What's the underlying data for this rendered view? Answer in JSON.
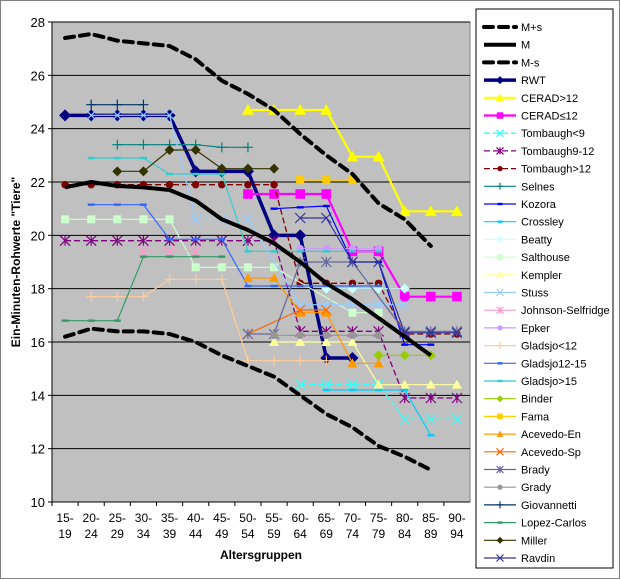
{
  "chart_data": {
    "type": "line",
    "title": "",
    "xlabel": "Altersgruppen",
    "ylabel": "Ein-Minuten-Rohwerte \"Tiere\"",
    "ylim": [
      10,
      28
    ],
    "yticks": [
      10,
      12,
      14,
      16,
      18,
      20,
      22,
      24,
      26,
      28
    ],
    "grid": true,
    "legend": "right",
    "plot_background": "#C0C0C0",
    "categories": [
      "15-19",
      "20-24",
      "25-29",
      "30-34",
      "35-39",
      "40-44",
      "45-49",
      "50-54",
      "55-59",
      "60-64",
      "65-69",
      "70-74",
      "75-79",
      "80-84",
      "85-89",
      "90-94"
    ],
    "series": [
      {
        "name": "M+s",
        "color": "#000000",
        "marker": "none",
        "style": "dashed-thick",
        "values": [
          27.4,
          27.55,
          27.3,
          27.2,
          27.1,
          26.6,
          25.8,
          25.3,
          24.7,
          23.8,
          23.0,
          22.3,
          21.2,
          20.6,
          19.6,
          null
        ]
      },
      {
        "name": "M",
        "color": "#000000",
        "marker": "none",
        "style": "solid-thick",
        "values": [
          21.8,
          22.0,
          21.85,
          21.8,
          21.7,
          21.3,
          20.6,
          20.2,
          19.7,
          19.0,
          18.2,
          17.6,
          16.9,
          16.2,
          15.5,
          null
        ]
      },
      {
        "name": "M-s",
        "color": "#000000",
        "marker": "none",
        "style": "dashed-thick",
        "values": [
          16.2,
          16.5,
          16.4,
          16.4,
          16.3,
          16.0,
          15.5,
          15.1,
          14.7,
          14.0,
          13.3,
          12.8,
          12.1,
          11.7,
          11.2,
          null
        ]
      },
      {
        "name": "RWT",
        "color": "#000080",
        "marker": "diamond",
        "style": "solid-bold",
        "values": [
          24.5,
          24.5,
          24.5,
          24.5,
          24.5,
          22.4,
          22.4,
          22.4,
          20.0,
          20.0,
          15.4,
          15.4,
          null,
          null,
          null,
          null
        ]
      },
      {
        "name": "CERAD>12",
        "color": "#FFFF00",
        "marker": "triangle",
        "style": "solid-medium",
        "values": [
          null,
          null,
          null,
          null,
          null,
          null,
          null,
          24.7,
          24.7,
          24.7,
          24.7,
          22.95,
          22.95,
          20.9,
          20.9,
          20.9
        ]
      },
      {
        "name": "CERAD≤12",
        "color": "#FF00FF",
        "marker": "square",
        "style": "solid-medium",
        "values": [
          null,
          null,
          null,
          null,
          null,
          null,
          null,
          21.55,
          21.55,
          21.55,
          21.55,
          19.4,
          19.4,
          17.7,
          17.7,
          17.7
        ]
      },
      {
        "name": "Tombaugh<9",
        "color": "#33FFFF",
        "marker": "x",
        "style": "dashed",
        "values": [
          null,
          null,
          null,
          null,
          null,
          null,
          null,
          null,
          null,
          14.4,
          14.4,
          14.4,
          14.4,
          13.1,
          13.1,
          13.1
        ]
      },
      {
        "name": "Tombaugh9-12",
        "color": "#800080",
        "marker": "star",
        "style": "dashed",
        "values": [
          19.8,
          19.8,
          19.8,
          19.8,
          19.8,
          19.8,
          19.8,
          19.8,
          19.8,
          16.4,
          16.4,
          16.4,
          16.4,
          13.9,
          13.9,
          13.9
        ]
      },
      {
        "name": "Tombaugh>12",
        "color": "#800000",
        "marker": "circle",
        "style": "dashed",
        "values": [
          21.9,
          21.9,
          21.9,
          21.9,
          21.9,
          21.9,
          21.9,
          21.9,
          21.9,
          18.2,
          18.2,
          18.2,
          18.2,
          16.3,
          16.3,
          16.3
        ]
      },
      {
        "name": "Selnes",
        "color": "#008080",
        "marker": "plus",
        "style": "solid",
        "values": [
          null,
          null,
          23.4,
          23.4,
          23.4,
          23.4,
          23.3,
          23.3,
          null,
          null,
          null,
          null,
          null,
          null,
          null,
          null
        ]
      },
      {
        "name": "Kozora",
        "color": "#0000FF",
        "marker": "dash",
        "style": "solid",
        "values": [
          null,
          null,
          null,
          null,
          null,
          null,
          null,
          null,
          21.0,
          21.05,
          21.1,
          19.0,
          19.0,
          15.9,
          15.9,
          null
        ]
      },
      {
        "name": "Crossley",
        "color": "#00CCFF",
        "marker": "dash",
        "style": "solid",
        "values": [
          null,
          null,
          null,
          null,
          null,
          null,
          null,
          null,
          null,
          null,
          14.2,
          14.2,
          14.2,
          14.2,
          12.5,
          null
        ]
      },
      {
        "name": "Beatty",
        "color": "#CCFFFF",
        "marker": "diamond",
        "style": "solid",
        "values": [
          null,
          null,
          null,
          null,
          null,
          null,
          null,
          null,
          null,
          null,
          18.0,
          18.0,
          18.0,
          18.0,
          null,
          null
        ]
      },
      {
        "name": "Salthouse",
        "color": "#CCFFCC",
        "marker": "square",
        "style": "solid",
        "values": [
          20.6,
          20.6,
          20.6,
          20.6,
          20.6,
          18.8,
          18.8,
          18.8,
          18.8,
          null,
          null,
          17.1,
          17.1,
          null,
          null,
          null
        ]
      },
      {
        "name": "Kempler",
        "color": "#FFFF99",
        "marker": "triangle",
        "style": "solid",
        "values": [
          null,
          null,
          null,
          null,
          null,
          null,
          null,
          null,
          16.0,
          16.0,
          16.0,
          16.0,
          14.4,
          14.4,
          14.4,
          14.4
        ]
      },
      {
        "name": "Stuss",
        "color": "#99CCFF",
        "marker": "x",
        "style": "solid",
        "values": [
          null,
          24.5,
          24.5,
          24.5,
          24.5,
          20.6,
          20.6,
          20.6,
          null,
          17.4,
          17.4,
          17.4,
          17.4,
          17.4,
          null,
          null
        ]
      },
      {
        "name": "Johnson-Selfridge",
        "color": "#FF99CC",
        "marker": "star",
        "style": "solid",
        "values": [
          null,
          null,
          null,
          19.4,
          19.4,
          19.4,
          null,
          null,
          null,
          null,
          null,
          null,
          null,
          null,
          null,
          null
        ]
      },
      {
        "name": "Epker",
        "color": "#CC99FF",
        "marker": "circle",
        "style": "solid",
        "values": [
          null,
          null,
          null,
          null,
          null,
          null,
          null,
          null,
          null,
          19.5,
          19.5,
          19.5,
          19.5,
          null,
          null,
          null
        ]
      },
      {
        "name": "Gladsjo<12",
        "color": "#FFCC99",
        "marker": "plus",
        "style": "solid",
        "values": [
          null,
          17.7,
          17.7,
          17.7,
          18.35,
          18.35,
          18.35,
          15.3,
          15.3,
          15.3,
          15.3,
          null,
          null,
          null,
          null,
          null
        ]
      },
      {
        "name": "Gladsjo12-15",
        "color": "#3366FF",
        "marker": "dash",
        "style": "solid",
        "values": [
          null,
          21.15,
          21.15,
          21.15,
          19.85,
          19.85,
          19.85,
          18.1,
          18.1,
          18.1,
          18.1,
          18.1,
          18.1,
          null,
          null,
          null
        ]
      },
      {
        "name": "Gladsjo>15",
        "color": "#33CCCC",
        "marker": "dash",
        "style": "solid",
        "values": [
          null,
          22.9,
          22.9,
          22.9,
          22.3,
          22.3,
          22.3,
          19.4,
          19.4,
          19.4,
          19.4,
          19.4,
          19.4,
          null,
          null,
          null
        ]
      },
      {
        "name": "Binder",
        "color": "#99CC00",
        "marker": "diamond",
        "style": "solid",
        "values": [
          null,
          null,
          null,
          null,
          null,
          null,
          null,
          null,
          null,
          null,
          null,
          null,
          15.5,
          15.5,
          15.5,
          null
        ]
      },
      {
        "name": "Fama",
        "color": "#FFCC00",
        "marker": "square",
        "style": "solid",
        "values": [
          null,
          null,
          null,
          null,
          null,
          null,
          null,
          null,
          null,
          22.07,
          22.07,
          22.07,
          null,
          null,
          null,
          null
        ]
      },
      {
        "name": "Acevedo-En",
        "color": "#FF9900",
        "marker": "triangle",
        "style": "solid",
        "values": [
          null,
          null,
          null,
          null,
          null,
          null,
          null,
          18.4,
          18.4,
          17.1,
          17.1,
          15.2,
          15.2,
          null,
          null,
          null
        ]
      },
      {
        "name": "Acevedo-Sp",
        "color": "#FF6600",
        "marker": "x",
        "style": "solid",
        "values": [
          null,
          null,
          null,
          null,
          null,
          null,
          null,
          16.3,
          null,
          17.2,
          17.2,
          null,
          null,
          null,
          null,
          null
        ]
      },
      {
        "name": "Brady",
        "color": "#666699",
        "marker": "star",
        "style": "solid",
        "values": [
          null,
          null,
          null,
          null,
          null,
          null,
          null,
          16.3,
          16.3,
          19.0,
          19.0,
          19.0,
          null,
          16.4,
          16.4,
          16.4
        ]
      },
      {
        "name": "Grady",
        "color": "#969696",
        "marker": "circle",
        "style": "solid",
        "values": [
          null,
          null,
          null,
          null,
          null,
          null,
          null,
          null,
          16.25,
          16.25,
          16.25,
          16.25,
          16.25,
          null,
          null,
          null
        ]
      },
      {
        "name": "Giovannetti",
        "color": "#003366",
        "marker": "plus",
        "style": "solid",
        "values": [
          null,
          24.9,
          24.9,
          24.9,
          null,
          null,
          null,
          null,
          null,
          null,
          null,
          null,
          null,
          null,
          null,
          null
        ]
      },
      {
        "name": "Lopez-Carlos",
        "color": "#339966",
        "marker": "dash",
        "style": "solid",
        "values": [
          16.8,
          16.8,
          16.8,
          19.2,
          19.2,
          19.2,
          19.2,
          null,
          null,
          null,
          null,
          null,
          null,
          null,
          null,
          null
        ]
      },
      {
        "name": "Miller",
        "color": "#333300",
        "marker": "diamond",
        "style": "solid",
        "values": [
          null,
          null,
          22.4,
          22.4,
          23.2,
          23.2,
          22.5,
          22.5,
          22.5,
          null,
          null,
          null,
          null,
          null,
          null,
          null
        ]
      },
      {
        "name": "Ravdin",
        "color": "#333399",
        "marker": "x",
        "style": "solid",
        "values": [
          null,
          null,
          null,
          null,
          null,
          null,
          null,
          null,
          null,
          20.65,
          20.65,
          19.0,
          19.0,
          16.35,
          16.35,
          16.35
        ]
      }
    ]
  }
}
